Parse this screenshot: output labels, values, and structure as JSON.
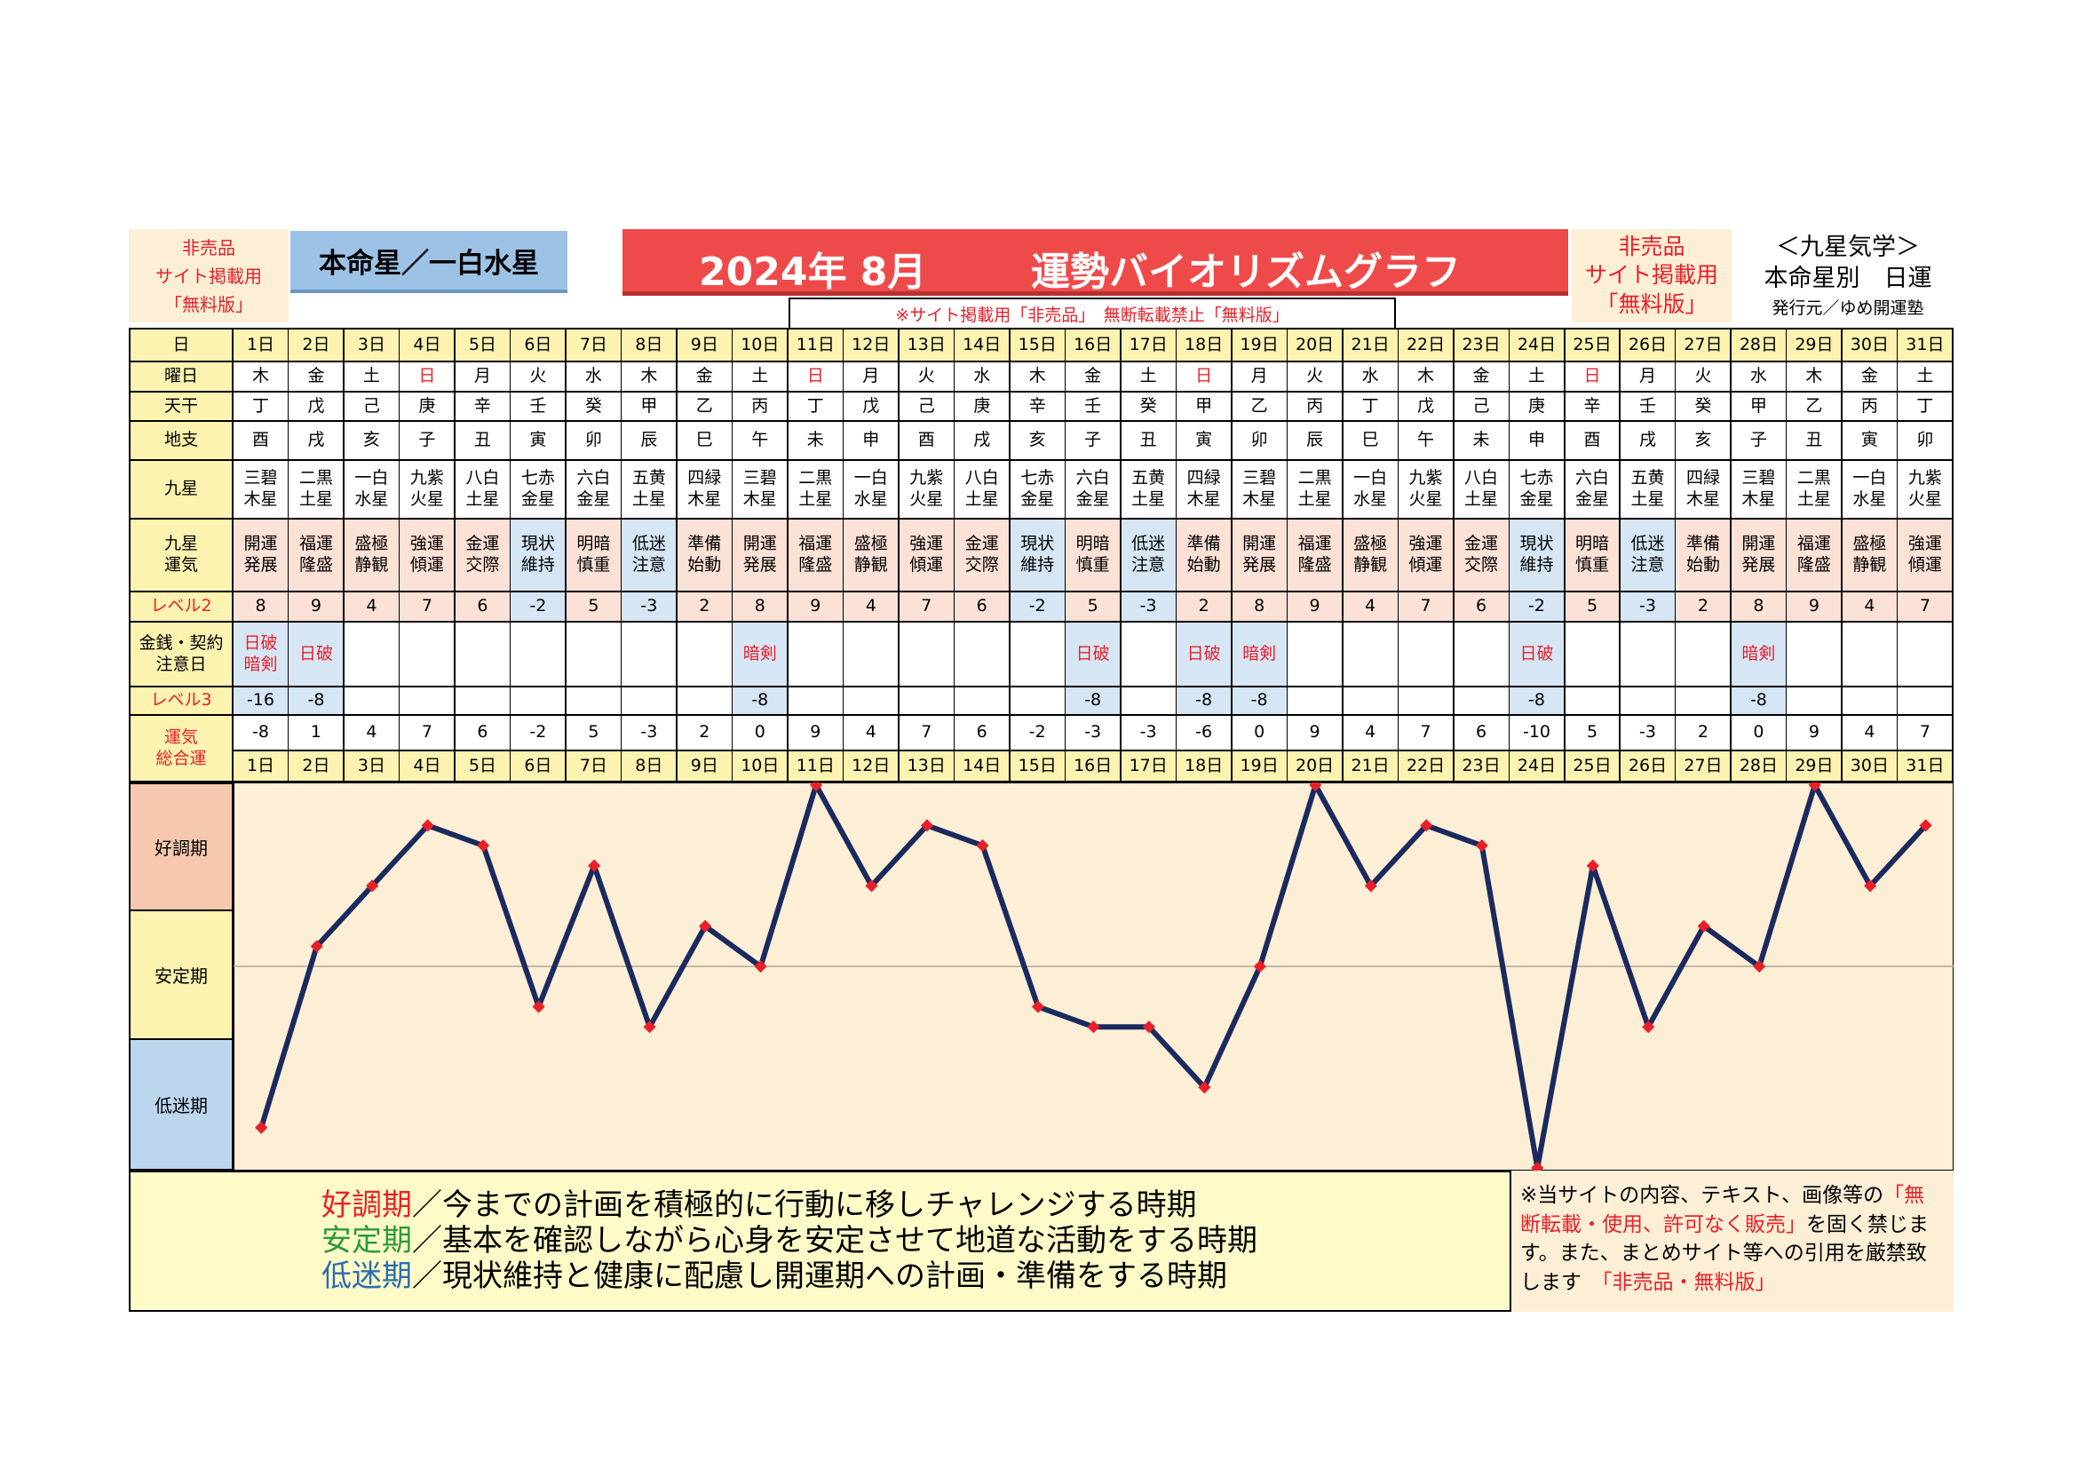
{
  "header": {
    "left_notice": [
      "非売品",
      "サイト掲載用",
      "「無料版」"
    ],
    "honmei_label": "本命星／一白水星",
    "title_year_month": "2024年 8月",
    "title_main": "運勢バイオリズムグラフ",
    "sub_notice": "※サイト掲載用「非売品」　無断転載禁止「無料版」",
    "right_notice": [
      "非売品",
      "サイト掲載用",
      "「無料版」"
    ],
    "publisher": [
      "＜九星気学＞",
      "本命星別　日運",
      "発行元／ゆめ開運塾"
    ]
  },
  "row_labels": {
    "day": "日",
    "weekday": "曜日",
    "tenkan": "天干",
    "chishi": "地支",
    "kyusei": "九星",
    "kyusei_unki": "九星\n運気",
    "level2": "レベル2",
    "kinsen": "金銭・契約\n注意日",
    "level3": "レベル3",
    "sogo": "運気\n総合運"
  },
  "days": [
    "1日",
    "2日",
    "3日",
    "4日",
    "5日",
    "6日",
    "7日",
    "8日",
    "9日",
    "10日",
    "11日",
    "12日",
    "13日",
    "14日",
    "15日",
    "16日",
    "17日",
    "18日",
    "19日",
    "20日",
    "21日",
    "22日",
    "23日",
    "24日",
    "25日",
    "26日",
    "27日",
    "28日",
    "29日",
    "30日",
    "31日"
  ],
  "weekdays": [
    "木",
    "金",
    "土",
    "日",
    "月",
    "火",
    "水",
    "木",
    "金",
    "土",
    "日",
    "月",
    "火",
    "水",
    "木",
    "金",
    "土",
    "日",
    "月",
    "火",
    "水",
    "木",
    "金",
    "土",
    "日",
    "月",
    "火",
    "水",
    "木",
    "金",
    "土"
  ],
  "tenkan": [
    "丁",
    "戊",
    "己",
    "庚",
    "辛",
    "壬",
    "癸",
    "甲",
    "乙",
    "丙",
    "丁",
    "戊",
    "己",
    "庚",
    "辛",
    "壬",
    "癸",
    "甲",
    "乙",
    "丙",
    "丁",
    "戊",
    "己",
    "庚",
    "辛",
    "壬",
    "癸",
    "甲",
    "乙",
    "丙",
    "丁"
  ],
  "chishi": [
    "酉",
    "戌",
    "亥",
    "子",
    "丑",
    "寅",
    "卯",
    "辰",
    "巳",
    "午",
    "未",
    "申",
    "酉",
    "戌",
    "亥",
    "子",
    "丑",
    "寅",
    "卯",
    "辰",
    "巳",
    "午",
    "未",
    "申",
    "酉",
    "戌",
    "亥",
    "子",
    "丑",
    "寅",
    "卯"
  ],
  "kyusei": [
    "三碧\n木星",
    "二黒\n土星",
    "一白\n水星",
    "九紫\n火星",
    "八白\n土星",
    "七赤\n金星",
    "六白\n金星",
    "五黄\n土星",
    "四緑\n木星",
    "三碧\n木星",
    "二黒\n土星",
    "一白\n水星",
    "九紫\n火星",
    "八白\n土星",
    "七赤\n金星",
    "六白\n金星",
    "五黄\n土星",
    "四緑\n木星",
    "三碧\n木星",
    "二黒\n土星",
    "一白\n水星",
    "九紫\n火星",
    "八白\n土星",
    "七赤\n金星",
    "六白\n金星",
    "五黄\n土星",
    "四緑\n木星",
    "三碧\n木星",
    "二黒\n土星",
    "一白\n水星",
    "九紫\n火星"
  ],
  "unki": [
    "開運\n発展",
    "福運\n隆盛",
    "盛極\n静観",
    "強運\n傾運",
    "金運\n交際",
    "現状\n維持",
    "明暗\n慎重",
    "低迷\n注意",
    "準備\n始動",
    "開運\n発展",
    "福運\n隆盛",
    "盛極\n静観",
    "強運\n傾運",
    "金運\n交際",
    "現状\n維持",
    "明暗\n慎重",
    "低迷\n注意",
    "準備\n始動",
    "開運\n発展",
    "福運\n隆盛",
    "盛極\n静観",
    "強運\n傾運",
    "金運\n交際",
    "現状\n維持",
    "明暗\n慎重",
    "低迷\n注意",
    "準備\n始動",
    "開運\n発展",
    "福運\n隆盛",
    "盛極\n静観",
    "強運\n傾運"
  ],
  "level2": [
    "8",
    "9",
    "4",
    "7",
    "6",
    "-2",
    "5",
    "-3",
    "2",
    "8",
    "9",
    "4",
    "7",
    "6",
    "-2",
    "5",
    "-3",
    "2",
    "8",
    "9",
    "4",
    "7",
    "6",
    "-2",
    "5",
    "-3",
    "2",
    "8",
    "9",
    "4",
    "7"
  ],
  "kinsen": [
    "日破\n暗剣",
    "日破",
    "",
    "",
    "",
    "",
    "",
    "",
    "",
    "暗剣",
    "",
    "",
    "",
    "",
    "",
    "日破",
    "",
    "日破",
    "暗剣",
    "",
    "",
    "",
    "",
    "日破",
    "",
    "",
    "",
    "暗剣",
    "",
    "",
    ""
  ],
  "level3": [
    "-16",
    "-8",
    "",
    "",
    "",
    "",
    "",
    "",
    "",
    "-8",
    "",
    "",
    "",
    "",
    "",
    "-8",
    "",
    "-8",
    "-8",
    "",
    "",
    "",
    "",
    "-8",
    "",
    "",
    "",
    "-8",
    "",
    "",
    ""
  ],
  "sogo": [
    "-8",
    "1",
    "4",
    "7",
    "6",
    "-2",
    "5",
    "-3",
    "2",
    "0",
    "9",
    "4",
    "7",
    "6",
    "-2",
    "-3",
    "-3",
    "-6",
    "0",
    "9",
    "4",
    "7",
    "6",
    "-10",
    "5",
    "-3",
    "2",
    "0",
    "9",
    "4",
    "7"
  ],
  "chart_data": {
    "type": "line",
    "x": [
      "1日",
      "2日",
      "3日",
      "4日",
      "5日",
      "6日",
      "7日",
      "8日",
      "9日",
      "10日",
      "11日",
      "12日",
      "13日",
      "14日",
      "15日",
      "16日",
      "17日",
      "18日",
      "19日",
      "20日",
      "21日",
      "22日",
      "23日",
      "24日",
      "25日",
      "26日",
      "27日",
      "28日",
      "29日",
      "30日",
      "31日"
    ],
    "values": [
      -8,
      1,
      4,
      7,
      6,
      -2,
      5,
      -3,
      2,
      0,
      9,
      4,
      7,
      6,
      -2,
      -3,
      -3,
      -6,
      0,
      9,
      4,
      7,
      6,
      -10,
      5,
      -3,
      2,
      0,
      9,
      4,
      7
    ],
    "ylim": [
      -10,
      9
    ],
    "bands": [
      "好調期",
      "安定期",
      "低迷期"
    ],
    "line_color": "#1a2a5e",
    "marker_color": "#e8202a"
  },
  "legend": {
    "good_term": "好調期",
    "good_text": "／今までの計画を積極的に行動に移しチャレンジする時期",
    "stable_term": "安定期",
    "stable_text": "／基本を確認しながら心身を安定させて地道な活動をする時期",
    "low_term": "低迷期",
    "low_text": "／現状維持と健康に配慮し開運期への計画・準備をする時期"
  },
  "notice": {
    "line1": "※当サイトの内容、テキスト、画像等の",
    "red1": "「無断転載・使用、許可なく販売」",
    "line2": "を固く禁じます。また、まとめサイト等への引用を厳禁致します",
    "red2": "「非売品・無料版」"
  },
  "colors": {
    "cream": "#fdf3b0",
    "pink": "#fbe1d6",
    "lightblue": "#d6e6f4",
    "red_banner": "#ef4a4a",
    "blue_box": "#9cc3e6",
    "header_cream": "#fdeed6"
  }
}
